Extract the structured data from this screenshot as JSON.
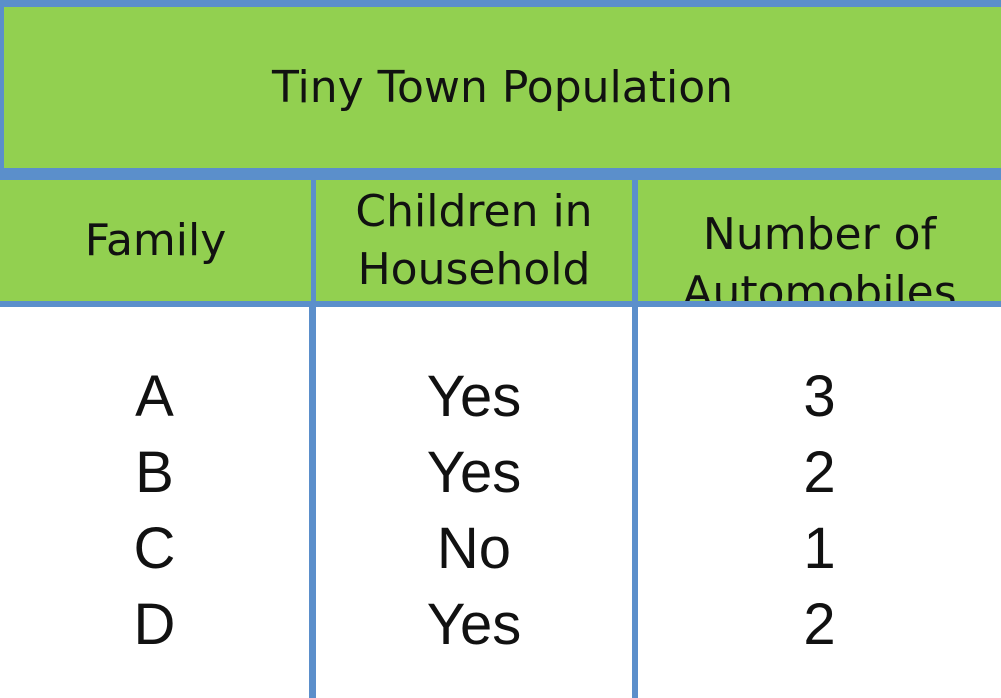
{
  "title": "Tiny Town Population",
  "headers": {
    "family": "Family",
    "children": "Children in\nHousehold",
    "automobiles": "Number of\nAutomobiles"
  },
  "rows": [
    {
      "family": "A",
      "children": "Yes",
      "automobiles": "3"
    },
    {
      "family": "B",
      "children": "Yes",
      "automobiles": "2"
    },
    {
      "family": "C",
      "children": "No",
      "automobiles": "1"
    },
    {
      "family": "D",
      "children": "Yes",
      "automobiles": "2"
    }
  ],
  "colors": {
    "header_fill": "#92d050",
    "border": "#5b8fcb",
    "body_fill": "#ffffff"
  }
}
